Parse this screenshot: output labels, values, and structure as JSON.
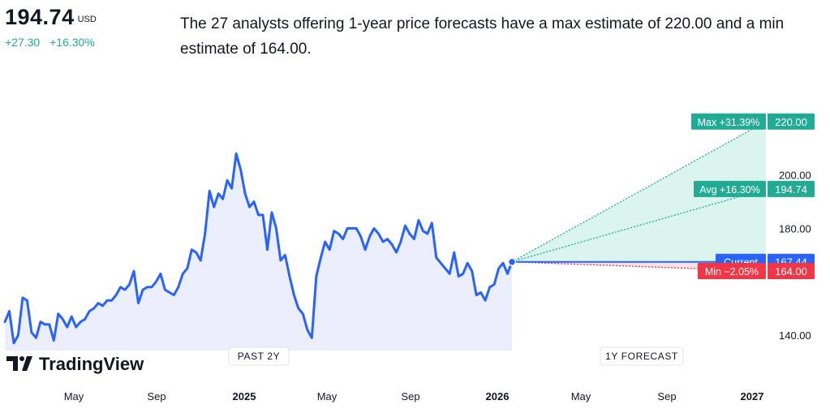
{
  "header": {
    "price": "194.74",
    "currency": "USD",
    "change_abs": "+27.30",
    "change_pct": "+16.30%",
    "summary": "The 27 analysts offering 1-year price forecasts have a max estimate of 220.00 and a min estimate of 164.00."
  },
  "branding": {
    "logo_text": "TradingView"
  },
  "colors": {
    "line": "#2962ff",
    "up": "#22ab94",
    "down": "#f23645",
    "current": "#2962ff",
    "fill": "#e9edfb",
    "forecast_fill": "#d9f5ee"
  },
  "chart_data": {
    "type": "line",
    "series": [
      {
        "values": [
          145,
          149,
          137,
          140,
          154,
          153,
          141,
          139,
          145,
          144,
          144,
          138,
          148,
          146,
          143,
          147,
          143,
          145,
          146,
          149,
          150,
          152,
          151,
          153,
          153,
          155,
          158,
          157,
          159,
          164,
          152,
          157,
          158,
          158,
          160,
          163,
          157,
          156,
          155,
          158,
          163,
          165,
          172,
          171,
          168,
          178,
          194,
          188,
          193,
          191,
          198,
          195,
          208,
          202,
          193,
          188,
          190,
          185,
          185,
          172,
          186,
          180,
          168,
          170,
          162,
          155,
          150,
          148,
          142,
          139,
          162,
          169,
          175,
          172,
          179,
          178,
          176,
          180,
          180,
          180,
          177,
          172,
          177,
          180,
          178,
          175,
          176,
          174,
          171,
          175,
          181,
          178,
          176,
          183,
          179,
          178,
          182,
          169,
          167,
          165,
          163,
          171,
          162,
          163,
          167,
          164,
          155,
          156,
          153,
          158,
          159,
          165,
          167,
          163,
          167.44
        ]
      }
    ],
    "forecast": {
      "current": {
        "label": "Current",
        "value": "167.44"
      },
      "max": {
        "label": "Max +31.39%",
        "value": "220.00"
      },
      "avg": {
        "label": "Avg +16.30%",
        "value": "194.74"
      },
      "min": {
        "label": "Min −2.05%",
        "value": "164.00"
      },
      "max_value": 220.0,
      "avg_value": 194.74,
      "min_value": 164.0,
      "current_value": 167.44
    },
    "y_ticks": [
      "140.00",
      "180.00",
      "200.00"
    ],
    "y_tick_values": [
      140,
      180,
      200
    ],
    "x_ticks": [
      "May",
      "Sep",
      "2025",
      "May",
      "Sep",
      "2026",
      "May",
      "Sep",
      "2027"
    ],
    "section_labels": {
      "past": "PAST 2Y",
      "future": "1Y FORECAST"
    },
    "ylim": [
      131,
      231
    ]
  }
}
